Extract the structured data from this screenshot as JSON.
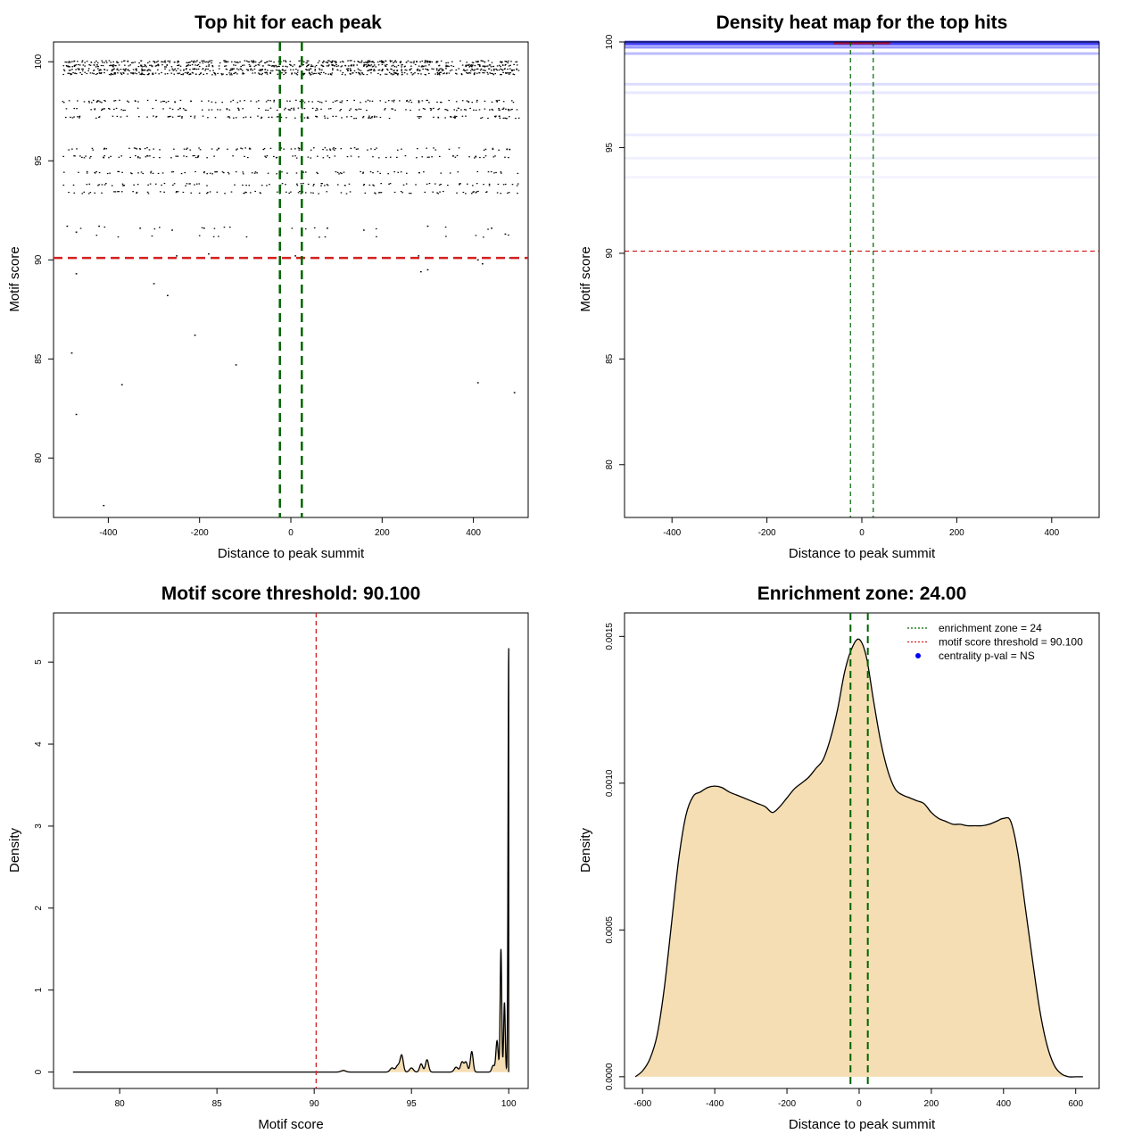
{
  "chart_data": [
    {
      "type": "scatter",
      "title": "Top hit for each peak",
      "xlabel": "Distance to peak summit",
      "ylabel": "Motif score",
      "xlim": [
        -520,
        520
      ],
      "ylim": [
        77,
        101.0
      ],
      "xticks": [
        -400,
        -200,
        0,
        200,
        400
      ],
      "yticks": [
        80,
        85,
        90,
        95,
        100
      ],
      "score_bands": [
        100,
        99.8,
        99.6,
        99.4,
        98.0,
        97.6,
        97.2,
        95.6,
        95.2,
        94.4,
        93.8,
        93.4,
        91.6,
        91.2
      ],
      "points_low": [
        {
          "x": -490,
          "y": 91.7
        },
        {
          "x": -470,
          "y": 91.4
        },
        {
          "x": -420,
          "y": 91.7
        },
        {
          "x": -330,
          "y": 91.6
        },
        {
          "x": -260,
          "y": 91.5
        },
        {
          "x": -190,
          "y": 91.6
        },
        {
          "x": 80,
          "y": 91.6
        },
        {
          "x": 160,
          "y": 91.5
        },
        {
          "x": 300,
          "y": 91.7
        },
        {
          "x": 440,
          "y": 91.6
        },
        {
          "x": 470,
          "y": 91.3
        },
        {
          "x": -250,
          "y": 90.2
        },
        {
          "x": -180,
          "y": 90.3
        },
        {
          "x": 10,
          "y": 90.2
        },
        {
          "x": 280,
          "y": 90.2
        },
        {
          "x": 420,
          "y": 89.8
        },
        {
          "x": -470,
          "y": 89.3
        },
        {
          "x": 285,
          "y": 89.4
        },
        {
          "x": 300,
          "y": 89.5
        },
        {
          "x": 410,
          "y": 90.0
        },
        {
          "x": 480,
          "y": 90.1
        },
        {
          "x": -300,
          "y": 88.8
        },
        {
          "x": -270,
          "y": 88.2
        },
        {
          "x": -210,
          "y": 86.2
        },
        {
          "x": -480,
          "y": 85.3
        },
        {
          "x": -120,
          "y": 84.7
        },
        {
          "x": -370,
          "y": 83.7
        },
        {
          "x": 410,
          "y": 83.8
        },
        {
          "x": 490,
          "y": 83.3
        },
        {
          "x": -470,
          "y": 82.2
        },
        {
          "x": -410,
          "y": 77.6
        }
      ],
      "threshold_score": 90.1,
      "enrichment_zone": [
        -24,
        24
      ]
    },
    {
      "type": "heatmap",
      "title": "Density heat map for the top hits",
      "xlabel": "Distance to peak summit",
      "ylabel": "Motif score",
      "xlim": [
        -500,
        500
      ],
      "ylim": [
        77.5,
        100
      ],
      "xticks": [
        -400,
        -200,
        0,
        200,
        400
      ],
      "yticks": [
        80,
        85,
        90,
        95,
        100
      ],
      "bands": [
        {
          "score": 99.95,
          "intensity": 1.0
        },
        {
          "score": 99.75,
          "intensity": 0.55
        },
        {
          "score": 99.45,
          "intensity": 0.35
        },
        {
          "score": 98.0,
          "intensity": 0.18
        },
        {
          "score": 97.6,
          "intensity": 0.12
        },
        {
          "score": 95.6,
          "intensity": 0.1
        },
        {
          "score": 94.5,
          "intensity": 0.08
        },
        {
          "score": 93.6,
          "intensity": 0.06
        }
      ],
      "threshold_score": 90.1,
      "enrichment_zone": [
        -24,
        24
      ]
    },
    {
      "type": "area",
      "title": "Motif score threshold: 90.100",
      "xlabel": "Motif score",
      "ylabel": "Density",
      "xlim": [
        76.6,
        101.0
      ],
      "ylim": [
        -0.2,
        5.6
      ],
      "xticks": [
        80,
        85,
        90,
        95,
        100
      ],
      "yticks": [
        0,
        1,
        2,
        3,
        4,
        5
      ],
      "baseline_start": 77.6,
      "peaks": [
        {
          "x": 91.5,
          "y": 0.02,
          "w": 0.12
        },
        {
          "x": 94.0,
          "y": 0.05,
          "w": 0.1
        },
        {
          "x": 94.3,
          "y": 0.08,
          "w": 0.1
        },
        {
          "x": 94.5,
          "y": 0.2,
          "w": 0.08
        },
        {
          "x": 95.0,
          "y": 0.05,
          "w": 0.1
        },
        {
          "x": 95.5,
          "y": 0.1,
          "w": 0.08
        },
        {
          "x": 95.8,
          "y": 0.15,
          "w": 0.08
        },
        {
          "x": 97.3,
          "y": 0.06,
          "w": 0.1
        },
        {
          "x": 97.6,
          "y": 0.12,
          "w": 0.08
        },
        {
          "x": 97.8,
          "y": 0.12,
          "w": 0.08
        },
        {
          "x": 98.1,
          "y": 0.25,
          "w": 0.07
        },
        {
          "x": 99.2,
          "y": 0.08,
          "w": 0.07
        },
        {
          "x": 99.4,
          "y": 0.38,
          "w": 0.06
        },
        {
          "x": 99.6,
          "y": 1.5,
          "w": 0.04
        },
        {
          "x": 99.78,
          "y": 0.85,
          "w": 0.04
        },
        {
          "x": 100.0,
          "y": 5.17,
          "w": 0.035
        }
      ],
      "threshold_score": 90.1
    },
    {
      "type": "area",
      "title": "Enrichment zone: 24.00",
      "xlabel": "Distance to peak summit",
      "ylabel": "Density",
      "xlim": [
        -650,
        665
      ],
      "ylim": [
        -4e-05,
        0.00158
      ],
      "xticks": [
        -600,
        -400,
        -200,
        0,
        200,
        400,
        600
      ],
      "yticks": [
        0.0,
        0.0005,
        0.001,
        0.0015
      ],
      "ytick_labels": [
        "0.0000",
        "0.0005",
        "0.0010",
        "0.0015"
      ],
      "x": [
        -620,
        -600,
        -580,
        -560,
        -540,
        -520,
        -500,
        -480,
        -460,
        -440,
        -420,
        -400,
        -380,
        -360,
        -340,
        -320,
        -300,
        -280,
        -260,
        -240,
        -220,
        -200,
        -180,
        -160,
        -140,
        -120,
        -100,
        -80,
        -60,
        -40,
        -20,
        0,
        20,
        40,
        60,
        80,
        100,
        120,
        140,
        160,
        180,
        200,
        220,
        240,
        260,
        280,
        300,
        320,
        340,
        360,
        380,
        400,
        420,
        440,
        460,
        480,
        500,
        520,
        540,
        560,
        580,
        600,
        620
      ],
      "y": [
        0.0,
        2e-05,
        6e-05,
        0.00014,
        0.0003,
        0.00052,
        0.00074,
        0.00089,
        0.000955,
        0.00097,
        0.000985,
        0.00099,
        0.000985,
        0.00097,
        0.00096,
        0.00095,
        0.00094,
        0.00093,
        0.00092,
        0.0009,
        0.00092,
        0.00095,
        0.00098,
        0.001,
        0.00102,
        0.00105,
        0.00108,
        0.00115,
        0.00125,
        0.00138,
        0.00146,
        0.00149,
        0.00143,
        0.00128,
        0.00114,
        0.00104,
        0.00098,
        0.00096,
        0.00095,
        0.00094,
        0.00093,
        0.0009,
        0.00088,
        0.00087,
        0.00086,
        0.00086,
        0.000855,
        0.000855,
        0.000855,
        0.00086,
        0.00087,
        0.00088,
        0.00087,
        0.00076,
        0.00058,
        0.0004,
        0.00023,
        0.00011,
        4e-05,
        1e-05,
        0.0,
        0.0,
        0.0
      ],
      "enrichment_zone": [
        -24,
        24
      ],
      "legend": {
        "placement": "top-right",
        "items": [
          {
            "label": "enrichment zone = 24",
            "color": "#006400",
            "style": "dotted-line"
          },
          {
            "label": "motif score threshold = 90.100",
            "color": "#d42020",
            "style": "dotted-line"
          },
          {
            "label": "centrality p-val = NS",
            "color": "#0000ff",
            "style": "point"
          }
        ]
      }
    }
  ],
  "colors": {
    "zone_line": "#006400",
    "threshold_line": "#d42020",
    "fill": "#f5deb3",
    "heat": "#0000ff",
    "heat_peak": "#cc0000"
  }
}
